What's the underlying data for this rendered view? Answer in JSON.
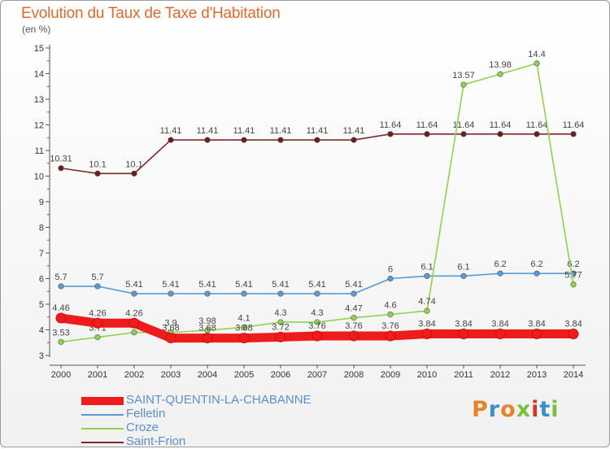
{
  "title": "Evolution du Taux de Taxe d'Habitation",
  "subtitle": "(en %)",
  "logo": {
    "text": "Proxiti",
    "colors": [
      "#e8832a",
      "#3a8fd0",
      "#e8832a",
      "#7cbf3a",
      "#d2362e",
      "#3a8fd0",
      "#7cbf3a"
    ]
  },
  "chart_data": {
    "type": "line",
    "x": [
      "2000",
      "2001",
      "2002",
      "2003",
      "2004",
      "2005",
      "2006",
      "2007",
      "2008",
      "2009",
      "2010",
      "2011",
      "2012",
      "2013",
      "2014"
    ],
    "ylim": [
      3,
      15
    ],
    "yticks": [
      "3",
      "4",
      "5",
      "6",
      "7",
      "8",
      "9",
      "10",
      "11",
      "12",
      "13",
      "14",
      "15"
    ],
    "grid": false,
    "legend_position": "bottom-left",
    "series": [
      {
        "name": "SAINT-QUENTIN-LA-CHABANNE",
        "color": "#ee1c1c",
        "values": [
          4.46,
          4.26,
          4.26,
          3.68,
          3.68,
          3.68,
          3.72,
          3.76,
          3.76,
          3.76,
          3.84,
          3.84,
          3.84,
          3.84,
          3.84
        ],
        "labels": [
          "4.46",
          "4.26",
          "4.26",
          "3.68",
          "3.68",
          "3.68",
          "3.72",
          "3.76",
          "3.76",
          "3.76",
          "3.84",
          "3.84",
          "3.84",
          "3.84",
          "3.84"
        ]
      },
      {
        "name": "Felletin",
        "color": "#5a9bd4",
        "values": [
          5.7,
          5.7,
          5.41,
          5.41,
          5.41,
          5.41,
          5.41,
          5.41,
          5.41,
          6,
          6.1,
          6.1,
          6.2,
          6.2,
          6.2
        ],
        "labels": [
          "5.7",
          "5.7",
          "5.41",
          "5.41",
          "5.41",
          "5.41",
          "5.41",
          "5.41",
          "5.41",
          "6",
          "6.1",
          "6.1",
          "6.2",
          "6.2",
          "6.2"
        ]
      },
      {
        "name": "Croze",
        "color": "#8ed34e",
        "values": [
          3.53,
          3.71,
          3.9,
          3.9,
          3.98,
          4.1,
          4.3,
          4.3,
          4.47,
          4.6,
          4.74,
          13.57,
          13.98,
          14.4,
          5.77
        ],
        "labels": [
          "3.53",
          "3.71",
          "3.9",
          "3.9",
          "3.98",
          "4.1",
          "4.3",
          "4.3",
          "4.47",
          "4.6",
          "4.74",
          "13.57",
          "13.98",
          "14.4",
          "5.77"
        ]
      },
      {
        "name": "Saint-Frion",
        "color": "#7a2a2a",
        "values": [
          10.31,
          10.1,
          10.1,
          11.41,
          11.41,
          11.41,
          11.41,
          11.41,
          11.41,
          11.64,
          11.64,
          11.64,
          11.64,
          11.64,
          11.64
        ],
        "labels": [
          "10.31",
          "10.1",
          "10.1",
          "11.41",
          "11.41",
          "11.41",
          "11.41",
          "11.41",
          "11.41",
          "11.64",
          "11.64",
          "11.64",
          "11.64",
          "11.64",
          "11.64"
        ]
      }
    ]
  }
}
